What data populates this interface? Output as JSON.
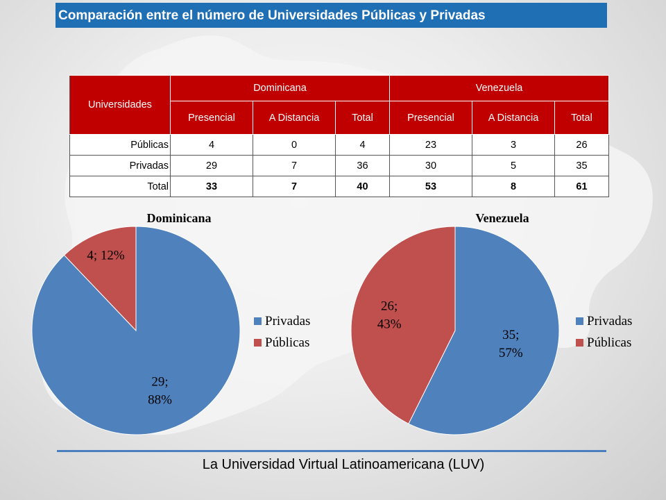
{
  "title": "Comparación entre el número de Universidades Públicas y Privadas",
  "table": {
    "corner_label": "Universidades",
    "countries": [
      "Dominicana",
      "Venezuela"
    ],
    "subheaders": [
      "Presencial",
      "A Distancia",
      "Total",
      "Presencial",
      "A Distancia",
      "Total"
    ],
    "rows": [
      {
        "label": "Públicas",
        "values": [
          "4",
          "0",
          "4",
          "23",
          "3",
          "26"
        ]
      },
      {
        "label": "Privadas",
        "values": [
          "29",
          "7",
          "36",
          "30",
          "5",
          "35"
        ]
      },
      {
        "label": "Total",
        "values": [
          "33",
          "7",
          "40",
          "53",
          "8",
          "61"
        ]
      }
    ]
  },
  "colors": {
    "privadas": "#4f81bd",
    "publicas": "#c0504d",
    "title_bg": "#1f6fb5",
    "table_header": "#c00000"
  },
  "chart_data": [
    {
      "type": "pie",
      "title": "Dominicana",
      "categories": [
        "Privadas",
        "Públicas"
      ],
      "values": [
        29,
        4
      ],
      "data_labels": [
        "29;\n88%",
        "4; 12%"
      ],
      "legend": [
        "Privadas",
        "Públicas"
      ],
      "legend_position": "right"
    },
    {
      "type": "pie",
      "title": "Venezuela",
      "categories": [
        "Privadas",
        "Públicas"
      ],
      "values": [
        35,
        26
      ],
      "data_labels": [
        "35;\n57%",
        "26;\n43%"
      ],
      "legend": [
        "Privadas",
        "Públicas"
      ],
      "legend_position": "right"
    }
  ],
  "footer": "La Universidad Virtual Latinoamericana (LUV)"
}
